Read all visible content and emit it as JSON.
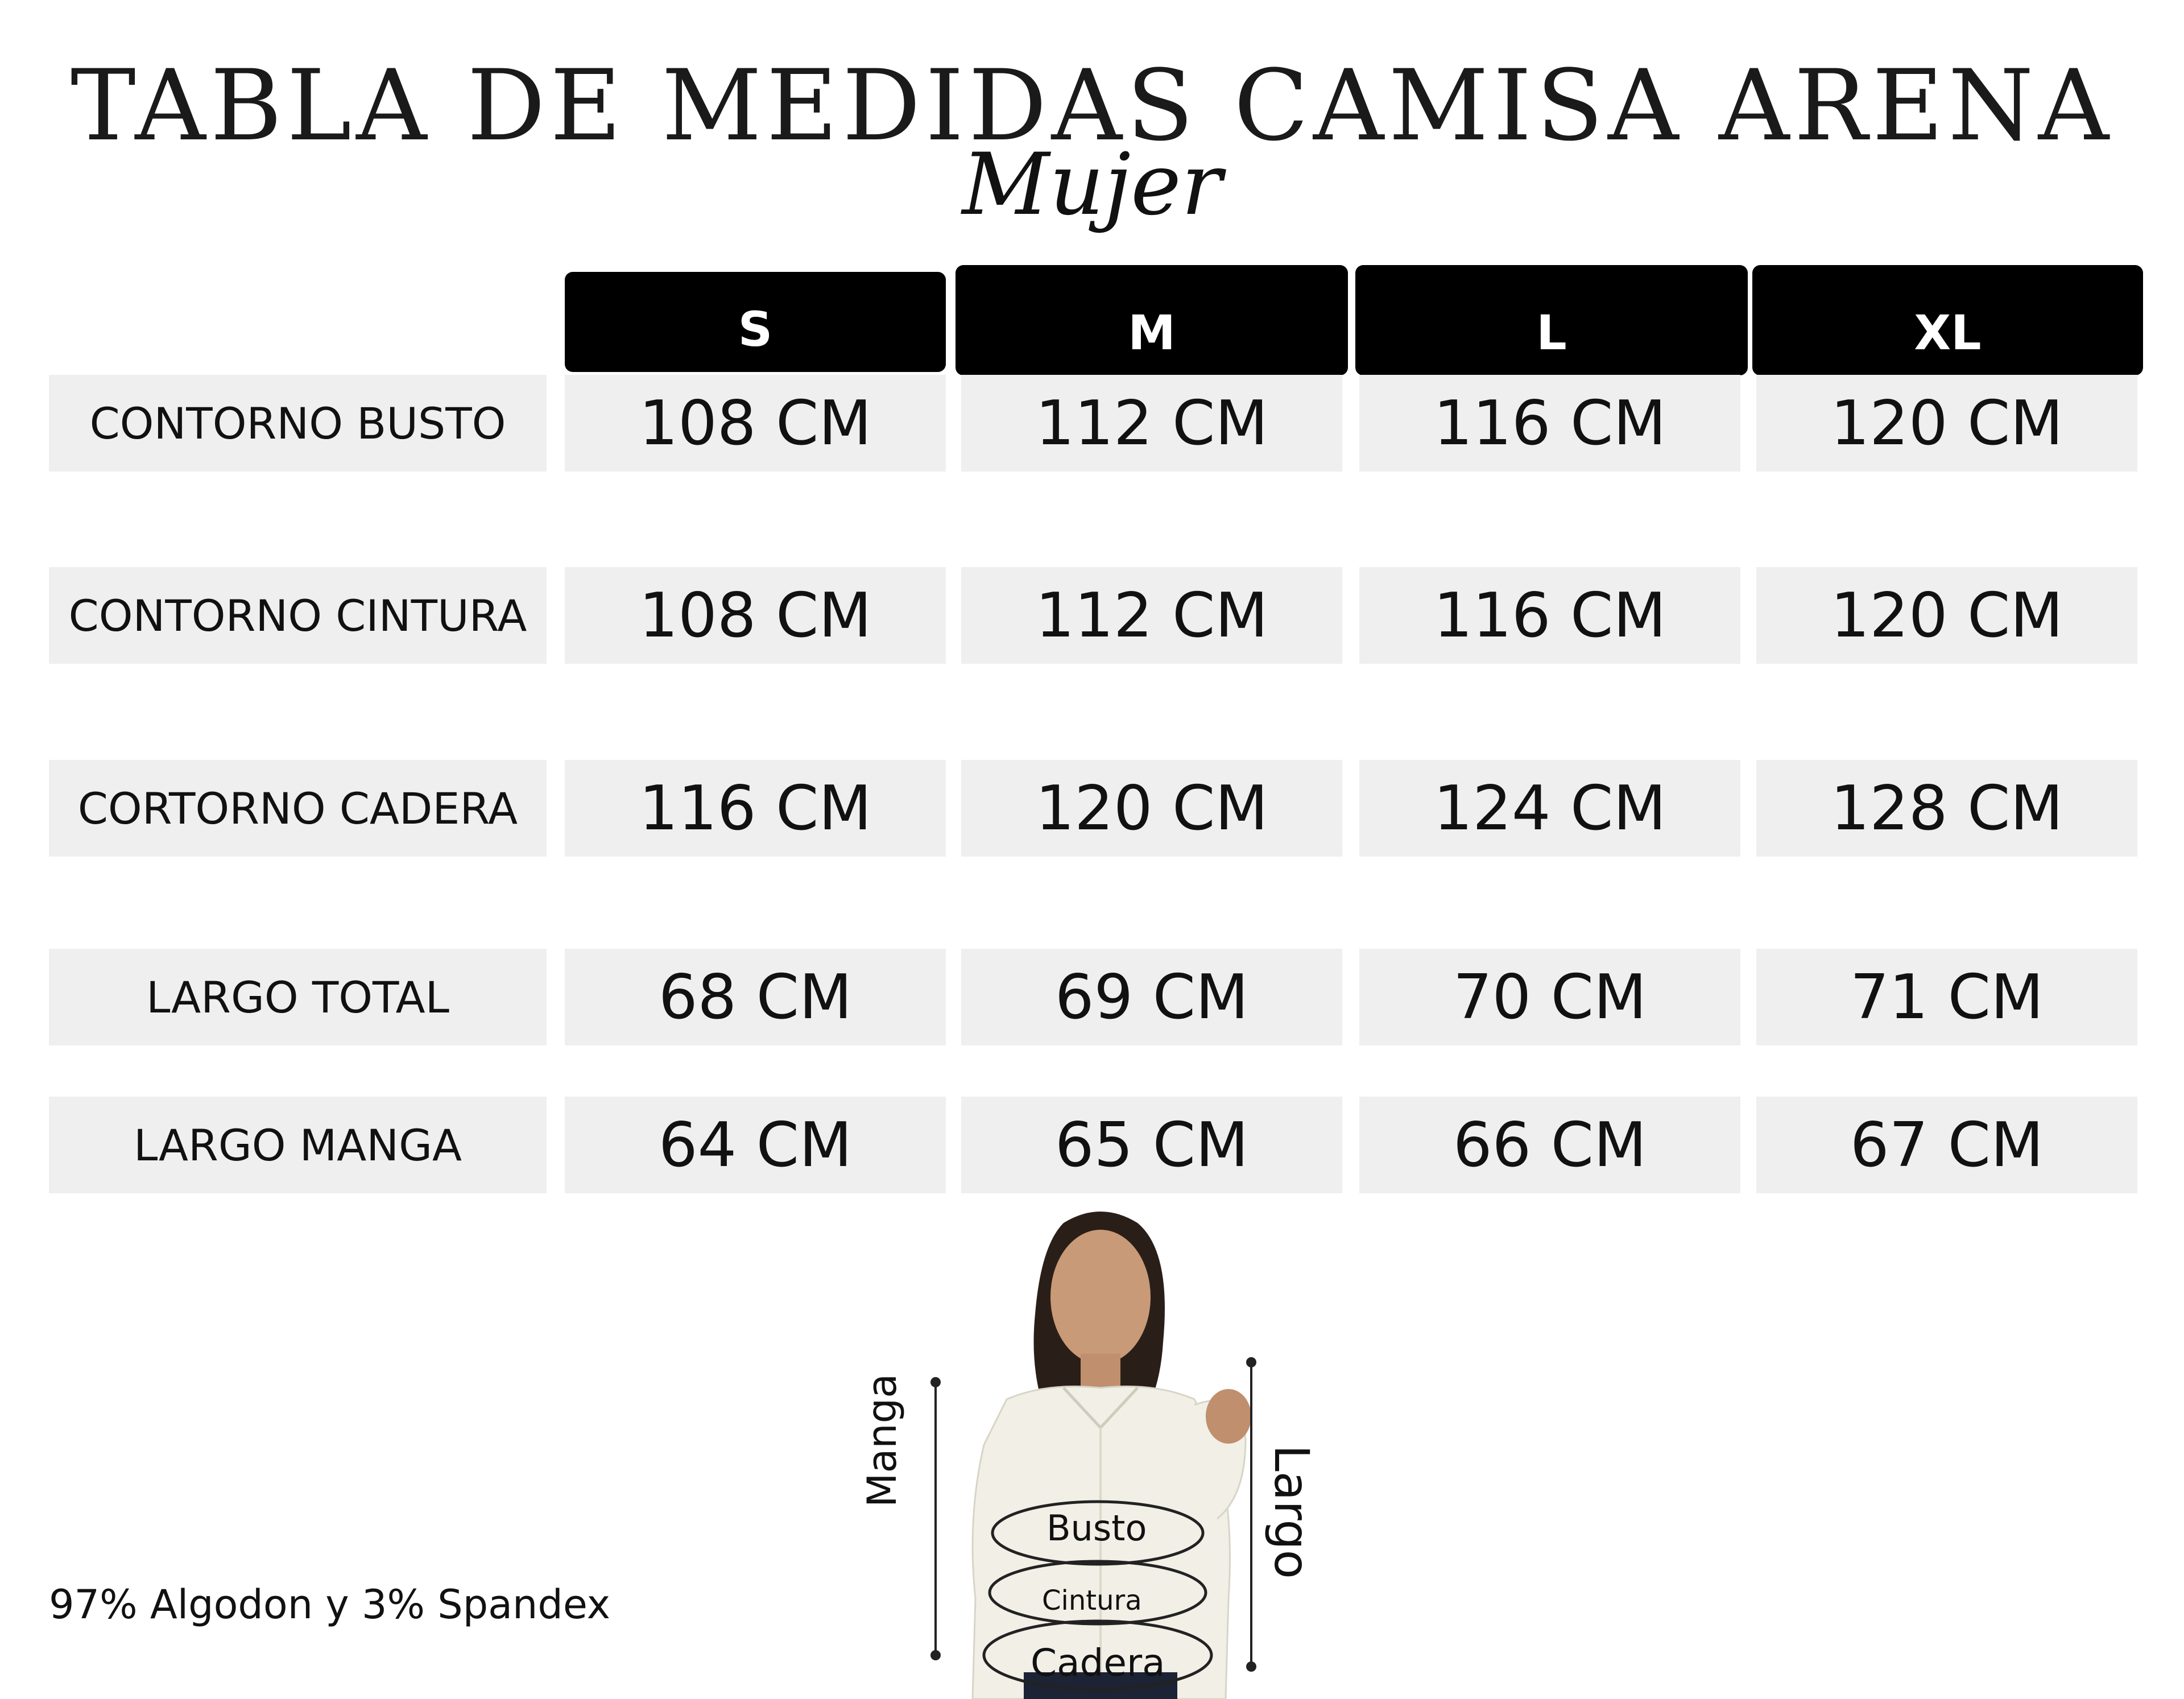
{
  "title": "TABLA DE MEDIDAS CAMISA ARENA",
  "subtitle": "Mujer",
  "sizes": [
    "S",
    "M",
    "L",
    "XL"
  ],
  "rows": [
    {
      "label": "CONTORNO BUSTO",
      "values": [
        "108 CM",
        "112 CM",
        "116 CM",
        "120 CM"
      ]
    },
    {
      "label": "CONTORNO CINTURA",
      "values": [
        "108 CM",
        "112 CM",
        "116 CM",
        "120 CM"
      ]
    },
    {
      "label": "CORTORNO CADERA",
      "values": [
        "116 CM",
        "120 CM",
        "124 CM",
        "128 CM"
      ]
    },
    {
      "label": "LARGO TOTAL",
      "values": [
        "68 CM",
        "69 CM",
        "70 CM",
        "71 CM"
      ]
    },
    {
      "label": "LARGO MANGA",
      "values": [
        "64 CM",
        "65 CM",
        "66 CM",
        "67 CM"
      ]
    }
  ],
  "footer": "97% Algodon y 3% Spandex",
  "figure": {
    "left_label": "Manga",
    "right_label": "Largo",
    "busto": "Busto",
    "cintura": "Cintura",
    "cadera": "Cadera"
  },
  "colors": {
    "header_bg": "#000000",
    "cell_bg": "#efefef",
    "text": "#111111"
  }
}
